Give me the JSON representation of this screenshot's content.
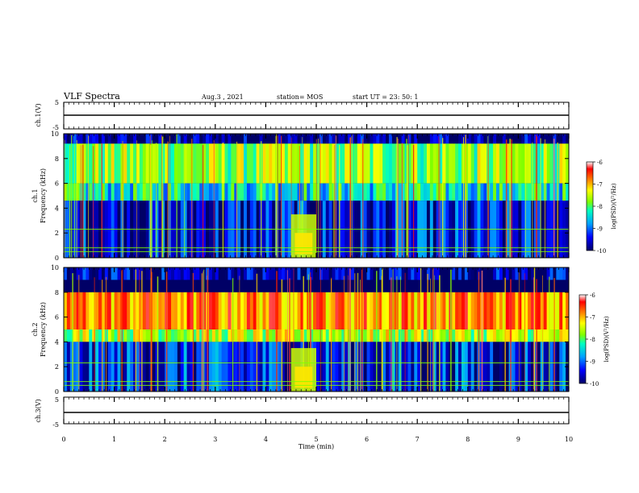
{
  "header": {
    "title": "VLF Spectra",
    "date": "Aug.3 , 2021",
    "station": "station= MOS",
    "start": "start UT = 23: 50: 1"
  },
  "chart_data": [
    {
      "type": "line",
      "panel": "ch1-voltage",
      "ylabel": "ch.1(V)",
      "ylim": [
        -5,
        5
      ],
      "yticks": [
        "5",
        "-5"
      ],
      "x": [
        0,
        10
      ],
      "values": [
        -2,
        -2
      ]
    },
    {
      "type": "heatmap",
      "panel": "ch1-spectrogram",
      "ylabel": "ch.1\nFrequency (kHz)",
      "xlim": [
        0,
        10
      ],
      "ylim": [
        0,
        10
      ],
      "yticks": [
        "0",
        "2",
        "4",
        "6",
        "8",
        "10"
      ],
      "colorbar": {
        "label": "log(PSD)(V²/Hz)",
        "range": [
          -10,
          -6
        ],
        "ticks": [
          "-6",
          "-7",
          "-8",
          "-9",
          "-10"
        ]
      },
      "band_log_psd": [
        {
          "freq_khz": [
            9.2,
            10.0
          ],
          "log_psd": -9.9
        },
        {
          "freq_khz": [
            6.0,
            9.2
          ],
          "log_psd": -8.0
        },
        {
          "freq_khz": [
            4.6,
            6.0
          ],
          "log_psd": -8.6
        },
        {
          "freq_khz": [
            0.0,
            4.6
          ],
          "log_psd": -9.6
        }
      ],
      "event_minutes": [
        4.5,
        5.0
      ]
    },
    {
      "type": "heatmap",
      "panel": "ch2-spectrogram",
      "ylabel": "ch.2\nFrequency (kHz)",
      "xlim": [
        0,
        10
      ],
      "ylim": [
        0,
        10
      ],
      "yticks": [
        "0",
        "2",
        "4",
        "6",
        "8",
        "10"
      ],
      "colorbar": {
        "label": "log(PSD)(V²/Hz)",
        "range": [
          -10,
          -6
        ],
        "ticks": [
          "-6",
          "-7",
          "-8",
          "-9",
          "-10"
        ]
      },
      "band_log_psd": [
        {
          "freq_khz": [
            9.0,
            10.0
          ],
          "log_psd": -9.8
        },
        {
          "freq_khz": [
            5.0,
            8.0
          ],
          "log_psd": -7.0
        },
        {
          "freq_khz": [
            4.0,
            5.0
          ],
          "log_psd": -7.8
        },
        {
          "freq_khz": [
            0.0,
            4.0
          ],
          "log_psd": -9.5
        }
      ],
      "event_minutes": [
        4.5,
        5.0
      ]
    },
    {
      "type": "line",
      "panel": "ch3-voltage",
      "ylabel": "ch.3(V)",
      "ylim": [
        -5,
        5
      ],
      "yticks": [
        "5",
        "-5"
      ],
      "xlabel": "Time (min)",
      "xticks": [
        "0",
        "1",
        "2",
        "3",
        "4",
        "5",
        "6",
        "7",
        "8",
        "9",
        "10"
      ],
      "x": [
        0,
        10
      ],
      "values": [
        -2,
        -2
      ]
    }
  ],
  "colors": {
    "colormap": [
      "#000066",
      "#0000ff",
      "#00a0ff",
      "#00ffc0",
      "#80ff00",
      "#ffff00",
      "#ff8000",
      "#ff0000",
      "#ffffff"
    ],
    "axis": "#000000"
  }
}
